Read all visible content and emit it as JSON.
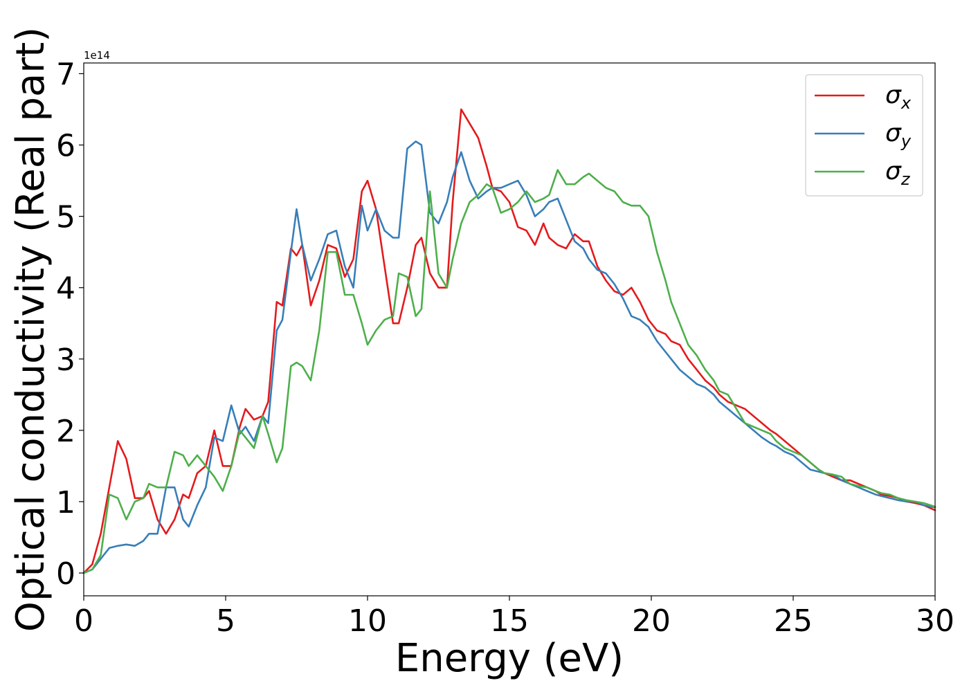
{
  "chart_data": {
    "type": "line",
    "xlabel": "Energy (eV)",
    "ylabel": "Optical conductivity (Real part)",
    "y_offset_label": "1e14",
    "xlim": [
      0,
      30
    ],
    "ylim": [
      -0.32,
      7.15
    ],
    "x_ticks": [
      0,
      5,
      10,
      15,
      20,
      25,
      30
    ],
    "y_ticks": [
      0,
      1,
      2,
      3,
      4,
      5,
      6,
      7
    ],
    "grid": false,
    "legend_placement": "top-right",
    "series": [
      {
        "name": "σx",
        "symbol": "σ",
        "subscript": "x",
        "color": "#e41a1c",
        "x": [
          0,
          0.3,
          0.6,
          0.9,
          1.2,
          1.5,
          1.8,
          2.1,
          2.3,
          2.6,
          2.9,
          3.2,
          3.5,
          3.7,
          4.0,
          4.3,
          4.6,
          4.9,
          5.2,
          5.5,
          5.7,
          6.0,
          6.3,
          6.5,
          6.8,
          7.0,
          7.3,
          7.5,
          7.7,
          8.0,
          8.3,
          8.6,
          8.9,
          9.2,
          9.5,
          9.8,
          10.0,
          10.3,
          10.6,
          10.9,
          11.1,
          11.4,
          11.7,
          11.9,
          12.2,
          12.5,
          12.8,
          13.0,
          13.3,
          13.6,
          13.9,
          14.2,
          14.4,
          14.7,
          15.0,
          15.3,
          15.6,
          15.9,
          16.2,
          16.4,
          16.7,
          17.0,
          17.3,
          17.6,
          17.8,
          18.1,
          18.4,
          18.7,
          19.0,
          19.3,
          19.6,
          19.9,
          20.2,
          20.5,
          20.7,
          21.0,
          21.3,
          21.6,
          21.9,
          22.2,
          22.4,
          22.7,
          23.0,
          23.3,
          23.6,
          23.9,
          24.2,
          24.4,
          24.7,
          25.0,
          25.3,
          25.6,
          25.9,
          26.1,
          26.4,
          26.7,
          27.0,
          27.3,
          27.6,
          27.9,
          28.1,
          28.4,
          28.7,
          29.0,
          29.3,
          29.6,
          30.0
        ],
        "values": [
          0,
          0.12,
          0.55,
          1.2,
          1.85,
          1.6,
          1.05,
          1.05,
          1.15,
          0.75,
          0.55,
          0.75,
          1.1,
          1.05,
          1.4,
          1.5,
          2.0,
          1.5,
          1.5,
          2.05,
          2.3,
          2.15,
          2.2,
          2.4,
          3.8,
          3.75,
          4.55,
          4.45,
          4.6,
          3.75,
          4.1,
          4.6,
          4.55,
          4.15,
          4.4,
          5.35,
          5.5,
          5.1,
          4.3,
          3.5,
          3.5,
          4.0,
          4.6,
          4.7,
          4.2,
          4.0,
          4.0,
          5.2,
          6.5,
          6.3,
          6.1,
          5.7,
          5.4,
          5.35,
          5.2,
          4.85,
          4.8,
          4.6,
          4.9,
          4.7,
          4.6,
          4.55,
          4.75,
          4.65,
          4.65,
          4.3,
          4.1,
          3.95,
          3.9,
          4.0,
          3.8,
          3.55,
          3.4,
          3.35,
          3.25,
          3.2,
          3.0,
          2.85,
          2.7,
          2.6,
          2.5,
          2.4,
          2.35,
          2.3,
          2.2,
          2.1,
          2.0,
          1.95,
          1.85,
          1.75,
          1.65,
          1.55,
          1.45,
          1.4,
          1.35,
          1.3,
          1.3,
          1.25,
          1.2,
          1.15,
          1.1,
          1.08,
          1.05,
          1.0,
          0.98,
          0.95,
          0.88
        ]
      },
      {
        "name": "σy",
        "symbol": "σ",
        "subscript": "y",
        "color": "#377eb8",
        "x": [
          0,
          0.3,
          0.6,
          0.9,
          1.2,
          1.5,
          1.8,
          2.1,
          2.3,
          2.6,
          2.9,
          3.2,
          3.5,
          3.7,
          4.0,
          4.3,
          4.6,
          4.9,
          5.2,
          5.5,
          5.7,
          6.0,
          6.3,
          6.5,
          6.8,
          7.0,
          7.3,
          7.5,
          7.7,
          8.0,
          8.3,
          8.6,
          8.9,
          9.2,
          9.5,
          9.8,
          10.0,
          10.3,
          10.6,
          10.9,
          11.1,
          11.4,
          11.7,
          11.9,
          12.2,
          12.5,
          12.8,
          13.0,
          13.3,
          13.6,
          13.9,
          14.2,
          14.4,
          14.7,
          15.0,
          15.3,
          15.6,
          15.9,
          16.2,
          16.4,
          16.7,
          17.0,
          17.3,
          17.6,
          17.8,
          18.1,
          18.4,
          18.7,
          19.0,
          19.3,
          19.6,
          19.9,
          20.2,
          20.5,
          20.7,
          21.0,
          21.3,
          21.6,
          21.9,
          22.2,
          22.4,
          22.7,
          23.0,
          23.3,
          23.6,
          23.9,
          24.2,
          24.4,
          24.7,
          25.0,
          25.3,
          25.6,
          25.9,
          26.1,
          26.4,
          26.7,
          27.0,
          27.3,
          27.6,
          27.9,
          28.1,
          28.4,
          28.7,
          29.0,
          29.3,
          29.6,
          30.0
        ],
        "values": [
          0,
          0.05,
          0.2,
          0.35,
          0.38,
          0.4,
          0.38,
          0.45,
          0.55,
          0.55,
          1.2,
          1.2,
          0.75,
          0.65,
          0.95,
          1.2,
          1.9,
          1.85,
          2.35,
          1.95,
          2.05,
          1.85,
          2.2,
          2.1,
          3.4,
          3.55,
          4.5,
          5.1,
          4.6,
          4.1,
          4.4,
          4.75,
          4.8,
          4.3,
          4.0,
          5.15,
          4.8,
          5.1,
          4.8,
          4.7,
          4.7,
          5.95,
          6.05,
          6.0,
          5.05,
          4.9,
          5.2,
          5.55,
          5.9,
          5.5,
          5.25,
          5.35,
          5.4,
          5.4,
          5.45,
          5.5,
          5.3,
          5.0,
          5.1,
          5.2,
          5.25,
          4.95,
          4.65,
          4.55,
          4.4,
          4.25,
          4.2,
          4.05,
          3.85,
          3.6,
          3.55,
          3.45,
          3.25,
          3.1,
          3.0,
          2.85,
          2.75,
          2.65,
          2.6,
          2.5,
          2.4,
          2.3,
          2.2,
          2.1,
          2.0,
          1.9,
          1.82,
          1.78,
          1.7,
          1.65,
          1.55,
          1.45,
          1.42,
          1.4,
          1.38,
          1.3,
          1.25,
          1.2,
          1.15,
          1.1,
          1.08,
          1.05,
          1.02,
          1.0,
          1.0,
          0.95,
          0.92
        ]
      },
      {
        "name": "σz",
        "symbol": "σ",
        "subscript": "z",
        "color": "#4daf4a",
        "x": [
          0,
          0.3,
          0.6,
          0.9,
          1.2,
          1.5,
          1.8,
          2.1,
          2.3,
          2.6,
          2.9,
          3.2,
          3.5,
          3.7,
          4.0,
          4.3,
          4.6,
          4.9,
          5.2,
          5.5,
          5.7,
          6.0,
          6.3,
          6.5,
          6.8,
          7.0,
          7.3,
          7.5,
          7.7,
          8.0,
          8.3,
          8.6,
          8.9,
          9.2,
          9.5,
          9.8,
          10.0,
          10.3,
          10.6,
          10.9,
          11.1,
          11.4,
          11.7,
          11.9,
          12.2,
          12.5,
          12.8,
          13.0,
          13.3,
          13.6,
          13.9,
          14.2,
          14.4,
          14.7,
          15.0,
          15.3,
          15.6,
          15.9,
          16.2,
          16.4,
          16.7,
          17.0,
          17.3,
          17.6,
          17.8,
          18.1,
          18.4,
          18.7,
          19.0,
          19.3,
          19.6,
          19.9,
          20.2,
          20.5,
          20.7,
          21.0,
          21.3,
          21.6,
          21.9,
          22.2,
          22.4,
          22.7,
          23.0,
          23.3,
          23.6,
          23.9,
          24.2,
          24.4,
          24.7,
          25.0,
          25.3,
          25.6,
          25.9,
          26.1,
          26.4,
          26.7,
          27.0,
          27.3,
          27.6,
          27.9,
          28.1,
          28.4,
          28.7,
          29.0,
          29.3,
          29.6,
          30.0
        ],
        "values": [
          0,
          0.05,
          0.25,
          1.1,
          1.05,
          0.75,
          1.0,
          1.05,
          1.25,
          1.2,
          1.2,
          1.7,
          1.65,
          1.5,
          1.65,
          1.5,
          1.35,
          1.15,
          1.5,
          2.0,
          1.9,
          1.75,
          2.2,
          1.95,
          1.55,
          1.75,
          2.9,
          2.95,
          2.9,
          2.7,
          3.4,
          4.5,
          4.5,
          3.9,
          3.9,
          3.5,
          3.2,
          3.4,
          3.55,
          3.6,
          4.2,
          4.15,
          3.6,
          3.7,
          5.35,
          4.2,
          4.0,
          4.4,
          4.9,
          5.2,
          5.3,
          5.45,
          5.4,
          5.05,
          5.1,
          5.2,
          5.35,
          5.2,
          5.25,
          5.3,
          5.65,
          5.45,
          5.45,
          5.55,
          5.6,
          5.5,
          5.4,
          5.35,
          5.2,
          5.15,
          5.15,
          5.0,
          4.5,
          4.1,
          3.8,
          3.5,
          3.2,
          3.05,
          2.85,
          2.7,
          2.55,
          2.5,
          2.3,
          2.1,
          2.05,
          2.0,
          1.95,
          1.85,
          1.75,
          1.7,
          1.65,
          1.55,
          1.45,
          1.4,
          1.38,
          1.35,
          1.25,
          1.22,
          1.2,
          1.15,
          1.12,
          1.1,
          1.05,
          1.02,
          1.0,
          0.98,
          0.93
        ]
      }
    ]
  }
}
